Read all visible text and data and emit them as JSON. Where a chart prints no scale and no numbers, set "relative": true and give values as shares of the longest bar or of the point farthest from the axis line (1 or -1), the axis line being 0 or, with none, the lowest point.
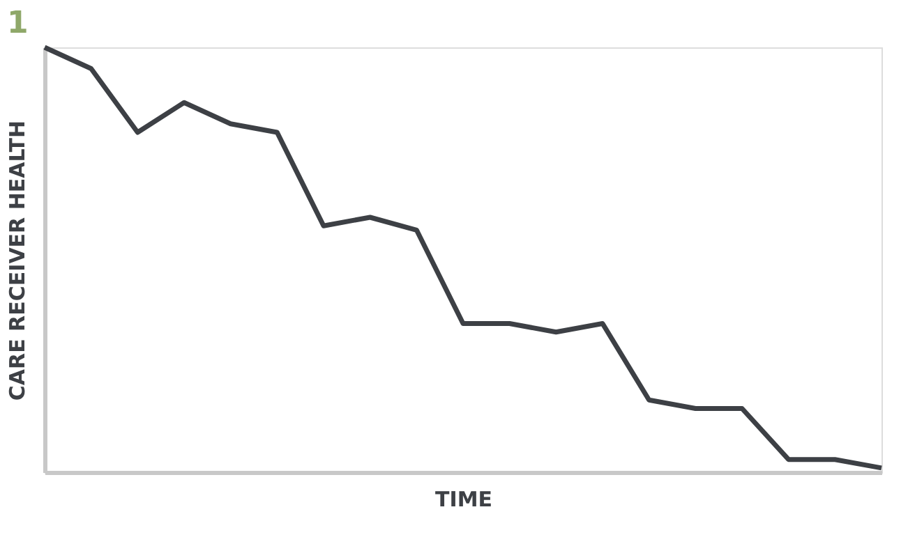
{
  "chart_data": {
    "type": "line",
    "title": "1",
    "xlabel": "TIME",
    "ylabel": "CARE RECEIVER HEALTH",
    "relative": true,
    "categories": [
      null,
      null,
      null,
      null,
      null,
      null,
      null,
      null,
      null,
      null,
      null,
      null,
      null,
      null,
      null,
      null,
      null,
      null,
      null
    ],
    "series": [
      {
        "color": "#3d4045",
        "values": [
          1.0,
          0.95,
          0.8,
          0.87,
          0.82,
          0.8,
          0.58,
          0.6,
          0.57,
          0.35,
          0.35,
          0.33,
          0.35,
          0.17,
          0.15,
          0.15,
          0.03,
          0.03,
          0.01
        ]
      }
    ],
    "marker": "none",
    "line_style": "solid",
    "grid": false,
    "legend": false
  }
}
